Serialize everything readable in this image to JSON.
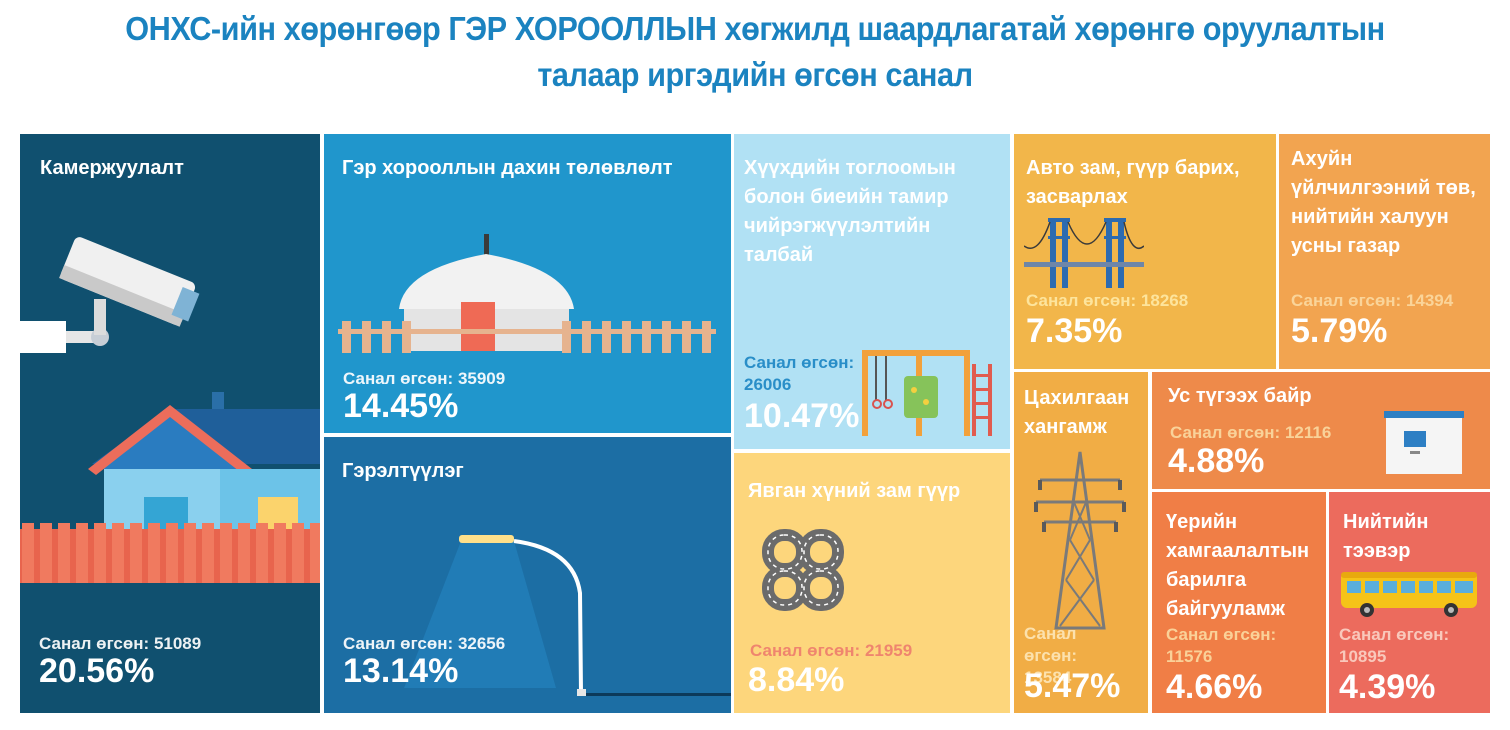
{
  "title": {
    "line1": "ОНХС-ийн хөрөнгөөр ГЭР ХОРООЛЛЫН хөгжилд шаардлагатай хөрөнгө оруулалтын",
    "line2": "талаар иргэдийн өгсөн санал"
  },
  "vote_label": "Санал өгсөн:",
  "chart_data": {
    "type": "treemap",
    "title": "ОНХС-ийн хөрөнгөөр ГЭР ХОРООЛЛЫН хөгжилд шаардлагатай хөрөнгө оруулалтын талаар иргэдийн өгсөн санал",
    "categories": [
      {
        "key": "camera",
        "label": "Камержуулалт",
        "votes": 51089,
        "percent": 20.56,
        "percent_text": "20.56%",
        "color": "#10506f",
        "icon": "cctv-house-icon"
      },
      {
        "key": "replan",
        "label": "Гэр хорооллын дахин төлөвлөлт",
        "votes": 35909,
        "percent": 14.45,
        "percent_text": "14.45%",
        "color": "#2096cc",
        "icon": "ger-yurt-icon"
      },
      {
        "key": "lighting",
        "label": "Гэрэлтүүлэг",
        "votes": 32656,
        "percent": 13.14,
        "percent_text": "13.14%",
        "color": "#1c6ea4",
        "icon": "street-lamp-icon"
      },
      {
        "key": "playground",
        "label": "Хүүхдийн тоглоомын болон биеийн тамир чийрэгжүүлэлтийн талбай",
        "votes": 26006,
        "percent": 10.47,
        "percent_text": "10.47%",
        "color": "#b1e1f4",
        "icon": "playground-icon"
      },
      {
        "key": "pedestrian",
        "label": "Явган хүний зам гүүр",
        "votes": 21959,
        "percent": 8.84,
        "percent_text": "8.84%",
        "color": "#fdd67c",
        "icon": "road-interchange-icon"
      },
      {
        "key": "road",
        "label": "Авто зам, гүүр барих, засварлах",
        "votes": 18268,
        "percent": 7.35,
        "percent_text": "7.35%",
        "color": "#f2b64a",
        "icon": "bridge-icon"
      },
      {
        "key": "service",
        "label": "Ахуйн үйлчилгээний төв, нийтийн халуун усны газар",
        "votes": 14394,
        "percent": 5.79,
        "percent_text": "5.79%",
        "color": "#f2a450",
        "icon": ""
      },
      {
        "key": "power",
        "label": "Цахилгаан хангамж",
        "votes": 13584,
        "percent": 5.47,
        "percent_text": "5.47%",
        "color": "#f1ad45",
        "icon": "power-tower-icon"
      },
      {
        "key": "water",
        "label": "Ус түгээх байр",
        "votes": 12116,
        "percent": 4.88,
        "percent_text": "4.88%",
        "color": "#ee8a4a",
        "icon": "water-kiosk-icon"
      },
      {
        "key": "flood",
        "label": "Үерийн хамгаалалтын барилга байгууламж",
        "votes": 11576,
        "percent": 4.66,
        "percent_text": "4.66%",
        "color": "#f07e46",
        "icon": ""
      },
      {
        "key": "transport",
        "label": "Нийтийн тээвэр",
        "votes": 10895,
        "percent": 4.39,
        "percent_text": "4.39%",
        "color": "#ec6b5d",
        "icon": "bus-icon"
      }
    ]
  },
  "colors": {
    "title": "#1b83c0",
    "votes_playground": "#1e87c5",
    "votes_pedestrian": "#ee7f6d",
    "votes_road": "#ffe8a3",
    "votes_power": "#fde6b6"
  }
}
